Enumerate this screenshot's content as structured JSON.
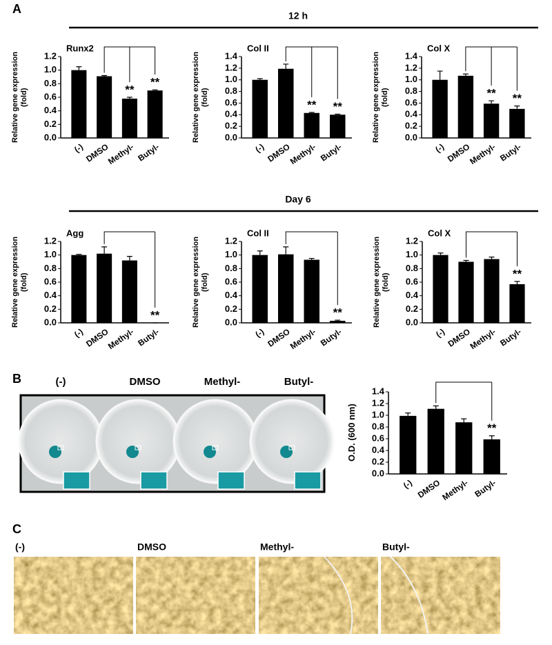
{
  "panel_labels": [
    "A",
    "B",
    "C"
  ],
  "row_titles": [
    "12 h",
    "Day 6"
  ],
  "well_labels": [
    "(-)",
    "DMSO",
    "Methyl-",
    "Butyl-"
  ],
  "micrograph_labels": [
    "(-)",
    "DMSO",
    "Methyl-",
    "Butyl-"
  ],
  "chart_data": [
    {
      "type": "bar",
      "title": "Runx2",
      "ylabel": "Relative gene expression (fold)",
      "color": "#000000",
      "categories": [
        "(-)",
        "DMSO",
        "Methyl-",
        "Butyl-"
      ],
      "values": [
        1.0,
        0.91,
        0.58,
        0.7
      ],
      "errors": [
        0.05,
        0.01,
        0.02,
        0.01
      ],
      "significance": [
        null,
        null,
        "**",
        "**"
      ],
      "ylim": [
        0,
        1.2
      ],
      "yticks": [
        {
          "value": 0,
          "label": "0.0"
        },
        0.2,
        0.4,
        0.6,
        0.8,
        {
          "value": 1,
          "label": "1.0"
        },
        1.2
      ]
    },
    {
      "type": "bar",
      "title": "Col II",
      "ylabel": "Relative gene expression (fold)",
      "color": "#000000",
      "categories": [
        "(-)",
        "DMSO",
        "Methyl-",
        "Butyl-"
      ],
      "values": [
        1.0,
        1.19,
        0.43,
        0.4
      ],
      "errors": [
        0.02,
        0.08,
        0.01,
        0.01
      ],
      "significance": [
        null,
        null,
        "**",
        "**"
      ],
      "ylim": [
        0,
        1.4
      ],
      "yticks": [
        {
          "value": 0,
          "label": "0.0"
        },
        0.2,
        0.4,
        0.6,
        0.8,
        {
          "value": 1,
          "label": "1.0"
        },
        1.2,
        1.4
      ]
    },
    {
      "type": "bar",
      "title": "Col X",
      "ylabel": "Relative gene expression (fold)",
      "color": "#000000",
      "categories": [
        "(-)",
        "DMSO",
        "Methyl-",
        "Butyl-"
      ],
      "values": [
        1.0,
        1.07,
        0.59,
        0.5
      ],
      "errors": [
        0.15,
        0.03,
        0.05,
        0.05
      ],
      "significance": [
        null,
        null,
        "**",
        "**"
      ],
      "ylim": [
        0,
        1.4
      ],
      "yticks": [
        {
          "value": 0,
          "label": "0.0"
        },
        0.2,
        0.4,
        0.6,
        0.8,
        {
          "value": 1,
          "label": "1.0"
        },
        1.2,
        1.4
      ]
    },
    {
      "type": "bar",
      "title": "Agg",
      "ylabel": "Relative gene expression (fold)",
      "color": "#000000",
      "categories": [
        "(-)",
        "DMSO",
        "Methyl-",
        "Butyl-"
      ],
      "values": [
        1.0,
        1.02,
        0.92,
        0.0
      ],
      "errors": [
        0.01,
        0.1,
        0.06,
        0.0
      ],
      "significance": [
        null,
        null,
        null,
        "**"
      ],
      "ylim": [
        0,
        1.2
      ],
      "yticks": [
        {
          "value": 0,
          "label": "0.0"
        },
        0.2,
        0.4,
        0.6,
        0.8,
        {
          "value": 1,
          "label": "1.0"
        },
        1.2
      ]
    },
    {
      "type": "bar",
      "title": "Col II",
      "ylabel": "Relative gene expression (fold)",
      "color": "#000000",
      "categories": [
        "(-)",
        "DMSO",
        "Methyl-",
        "Butyl-"
      ],
      "values": [
        1.0,
        1.01,
        0.93,
        0.03
      ],
      "errors": [
        0.06,
        0.11,
        0.02,
        0.01
      ],
      "significance": [
        null,
        null,
        null,
        "**"
      ],
      "ylim": [
        0,
        1.2
      ],
      "yticks": [
        {
          "value": 0,
          "label": "0.0"
        },
        0.2,
        0.4,
        0.6,
        0.8,
        {
          "value": 1,
          "label": "1.0"
        },
        1.2
      ]
    },
    {
      "type": "bar",
      "title": "Col X",
      "ylabel": "Relative gene expression (fold)",
      "color": "#000000",
      "categories": [
        "(-)",
        "DMSO",
        "Methyl-",
        "Butyl-"
      ],
      "values": [
        1.0,
        0.9,
        0.94,
        0.57
      ],
      "errors": [
        0.03,
        0.02,
        0.03,
        0.04
      ],
      "significance": [
        null,
        null,
        null,
        "**"
      ],
      "ylim": [
        0,
        1.2
      ],
      "yticks": [
        {
          "value": 0,
          "label": "0.0"
        },
        0.2,
        0.4,
        0.6,
        0.8,
        {
          "value": 1,
          "label": "1.0"
        },
        1.2
      ]
    },
    {
      "type": "bar",
      "ylabel": "O.D. (600 nm)",
      "color": "#000000",
      "categories": [
        "(-)",
        "DMSO",
        "Methyl-",
        "Butyl-"
      ],
      "values": [
        0.99,
        1.11,
        0.88,
        0.59
      ],
      "errors": [
        0.05,
        0.05,
        0.06,
        0.06
      ],
      "significance": [
        null,
        null,
        null,
        "**"
      ],
      "ylim": [
        0,
        1.4
      ],
      "yticks": [
        {
          "value": 0,
          "label": "0.0"
        },
        0.2,
        0.4,
        0.6,
        0.8,
        {
          "value": 1,
          "label": "1.0"
        },
        1.2,
        1.4
      ]
    }
  ]
}
